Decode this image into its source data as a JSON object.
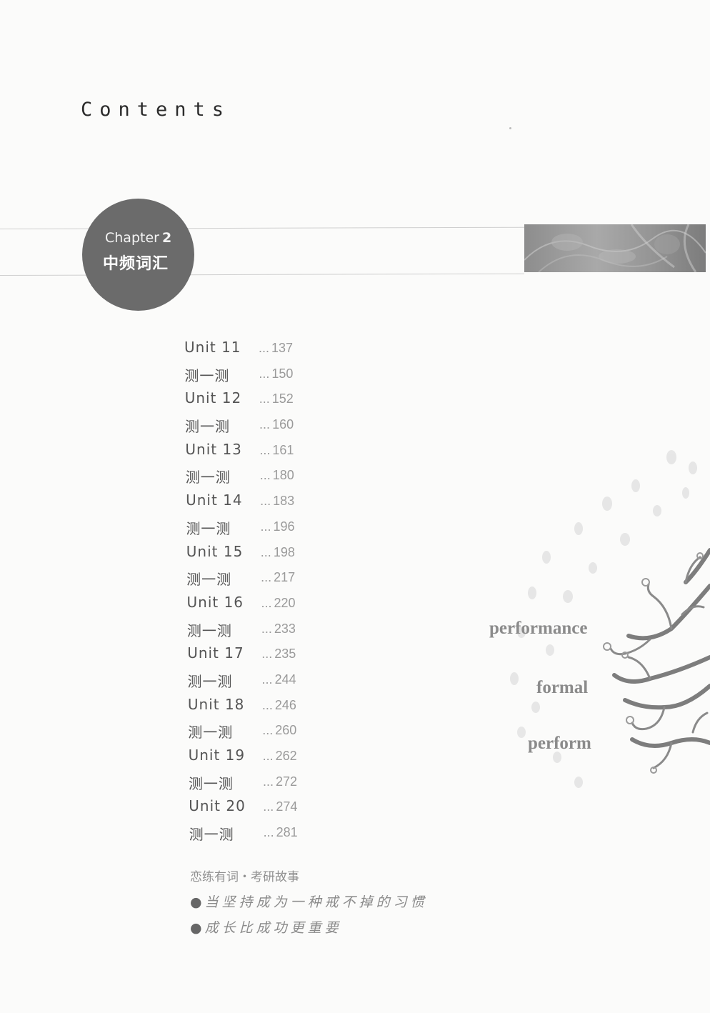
{
  "header": {
    "title": "Contents"
  },
  "chapter": {
    "label": "Chapter",
    "number": "2",
    "title": "中频词汇"
  },
  "toc": [
    {
      "label": "Unit 11",
      "page": "137"
    },
    {
      "label": "测一测",
      "page": "150"
    },
    {
      "label": "Unit 12",
      "page": "152"
    },
    {
      "label": "测一测",
      "page": "160"
    },
    {
      "label": "Unit 13",
      "page": "161"
    },
    {
      "label": "测一测",
      "page": "180"
    },
    {
      "label": "Unit 14",
      "page": "183"
    },
    {
      "label": "测一测",
      "page": "196"
    },
    {
      "label": "Unit 15",
      "page": "198"
    },
    {
      "label": "测一测",
      "page": "217"
    },
    {
      "label": "Unit 16",
      "page": "220"
    },
    {
      "label": "测一测",
      "page": "233"
    },
    {
      "label": "Unit 17",
      "page": "235"
    },
    {
      "label": "测一测",
      "page": "244"
    },
    {
      "label": "Unit 18",
      "page": "246"
    },
    {
      "label": "测一测",
      "page": "260"
    },
    {
      "label": "Unit 19",
      "page": "262"
    },
    {
      "label": "测一测",
      "page": "272"
    },
    {
      "label": "Unit 20",
      "page": "274"
    },
    {
      "label": "测一测",
      "page": "281"
    }
  ],
  "toc_dots": "...",
  "story": {
    "heading": "恋练有词・考研故事",
    "items": [
      "当坚持成为一种戒不掉的习惯",
      "成长比成功更重要"
    ]
  },
  "tree_words": [
    "performance",
    "formal",
    "perform"
  ]
}
